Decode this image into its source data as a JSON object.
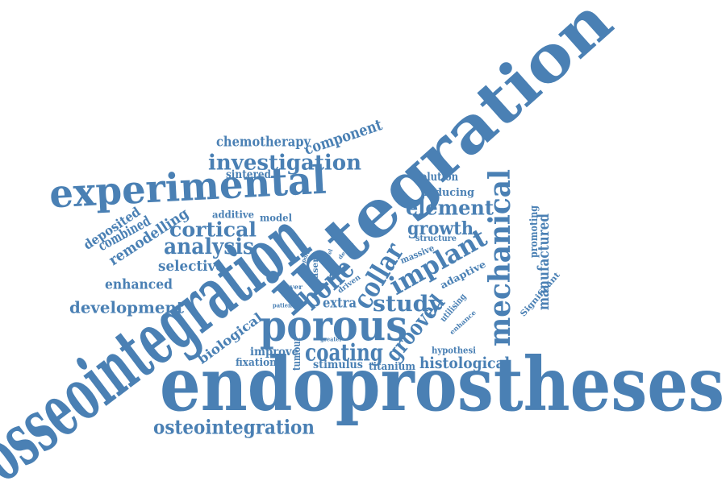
{
  "color": "#4a80b4",
  "words": [
    {
      "text": "osseointegration",
      "orientation": "rotated"
    },
    {
      "text": "endoprostheses",
      "orientation": "horizontal"
    },
    {
      "text": "integration",
      "orientation": "rotated"
    },
    {
      "text": "experimental",
      "orientation": "horizontal"
    },
    {
      "text": "porous",
      "orientation": "horizontal"
    },
    {
      "text": "mechanical",
      "orientation": "vertical"
    },
    {
      "text": "implant",
      "orientation": "rotated"
    },
    {
      "text": "bone",
      "orientation": "rotated"
    },
    {
      "text": "collar",
      "orientation": "rotated"
    },
    {
      "text": "investigation",
      "orientation": "horizontal"
    },
    {
      "text": "osteointegration",
      "orientation": "horizontal"
    },
    {
      "text": "coating",
      "orientation": "horizontal"
    },
    {
      "text": "element",
      "orientation": "horizontal"
    },
    {
      "text": "analysis",
      "orientation": "horizontal"
    },
    {
      "text": "cortical",
      "orientation": "horizontal"
    },
    {
      "text": "growth",
      "orientation": "horizontal"
    },
    {
      "text": "development",
      "orientation": "horizontal"
    },
    {
      "text": "study",
      "orientation": "horizontal"
    },
    {
      "text": "grooved",
      "orientation": "rotated"
    },
    {
      "text": "histological",
      "orientation": "horizontal"
    },
    {
      "text": "manufactured",
      "orientation": "vertical"
    },
    {
      "text": "component",
      "orientation": "rotated"
    },
    {
      "text": "chemotherapy",
      "orientation": "horizontal"
    },
    {
      "text": "remodelling",
      "orientation": "rotated"
    },
    {
      "text": "combined",
      "orientation": "rotated"
    },
    {
      "text": "deposited",
      "orientation": "rotated"
    },
    {
      "text": "selective",
      "orientation": "horizontal"
    },
    {
      "text": "enhanced",
      "orientation": "horizontal"
    },
    {
      "text": "extra",
      "orientation": "horizontal"
    },
    {
      "text": "biological",
      "orientation": "rotated"
    },
    {
      "text": "improve",
      "orientation": "horizontal"
    },
    {
      "text": "fixation",
      "orientation": "horizontal"
    },
    {
      "text": "stimulus",
      "orientation": "horizontal"
    },
    {
      "text": "titanium",
      "orientation": "horizontal"
    },
    {
      "text": "tumour",
      "orientation": "vertical"
    },
    {
      "text": "sintered",
      "orientation": "horizontal"
    },
    {
      "text": "solution",
      "orientation": "horizontal"
    },
    {
      "text": "inducing",
      "orientation": "horizontal"
    },
    {
      "text": "promoting",
      "orientation": "vertical"
    },
    {
      "text": "additive",
      "orientation": "horizontal"
    },
    {
      "text": "model",
      "orientation": "horizontal"
    },
    {
      "text": "adaptive",
      "orientation": "rotated"
    },
    {
      "text": "massive",
      "orientation": "rotated"
    },
    {
      "text": "utilising",
      "orientation": "rotated"
    },
    {
      "text": "hypothesi",
      "orientation": "horizontal"
    },
    {
      "text": "structure",
      "orientation": "horizontal"
    },
    {
      "text": "Significant",
      "orientation": "rotated"
    },
    {
      "text": "driven",
      "orientation": "rotated"
    },
    {
      "text": "laser",
      "orientation": "vertical"
    },
    {
      "text": "layer",
      "orientation": "horizontal"
    },
    {
      "text": "patient",
      "orientation": "horizontal"
    },
    {
      "text": "greater",
      "orientation": "horizontal"
    },
    {
      "text": "enhance",
      "orientation": "rotated"
    },
    {
      "text": "defect",
      "orientation": "rotated"
    },
    {
      "text": "novel",
      "orientation": "rotated"
    },
    {
      "text": "pore",
      "orientation": "rotated"
    }
  ]
}
